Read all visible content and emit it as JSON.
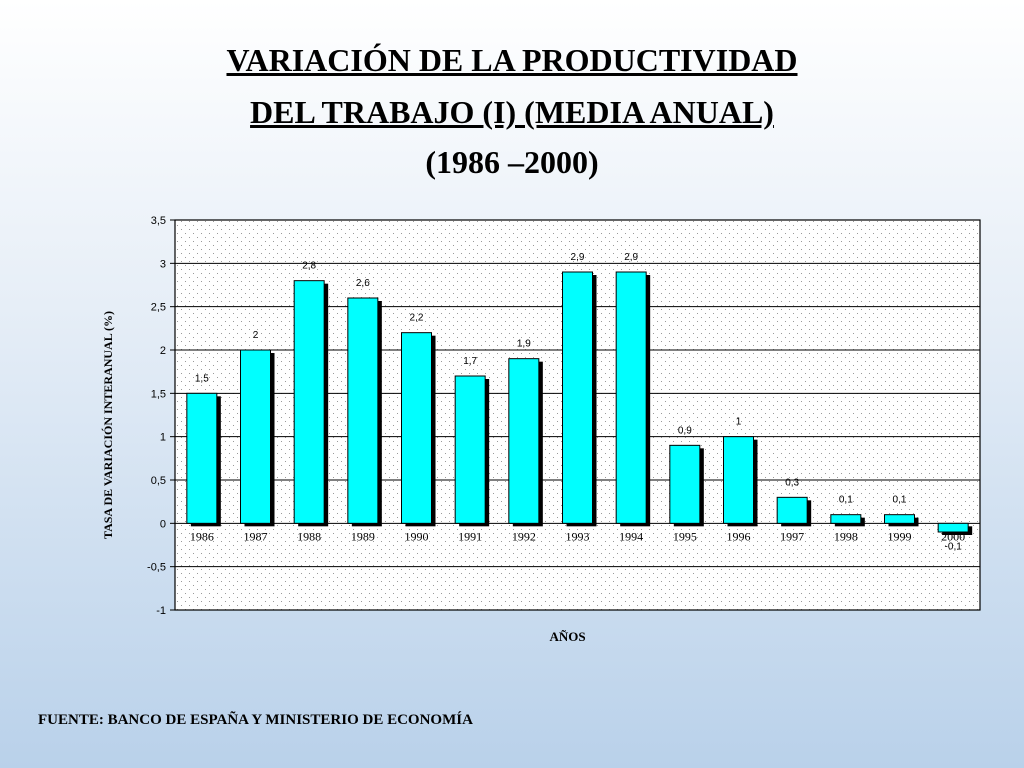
{
  "title": {
    "line1": "VARIACIÓN DE LA PRODUCTIVIDAD",
    "line2": "DEL TRABAJO (I) (MEDIA ANUAL)",
    "line3": "(1986 –2000)"
  },
  "source": "FUENTE: BANCO DE ESPAÑA Y MINISTERIO DE ECONOMÍA",
  "chart_data": {
    "type": "bar",
    "categories": [
      "1986",
      "1987",
      "1988",
      "1989",
      "1990",
      "1991",
      "1992",
      "1993",
      "1994",
      "1995",
      "1996",
      "1997",
      "1998",
      "1999",
      "2000"
    ],
    "values": [
      1.5,
      2,
      2.8,
      2.6,
      2.2,
      1.7,
      1.9,
      2.9,
      2.9,
      0.9,
      1,
      0.3,
      0.1,
      0.1,
      -0.1
    ],
    "value_labels": [
      "1,5",
      "2",
      "2,8",
      "2,6",
      "2,2",
      "1,7",
      "1,9",
      "2,9",
      "2,9",
      "0,9",
      "1",
      "0,3",
      "0,1",
      "0,1",
      "-0,1"
    ],
    "ylim": [
      -1,
      3.5
    ],
    "yticks": [
      -1,
      -0.5,
      0,
      0.5,
      1,
      1.5,
      2,
      2.5,
      3,
      3.5
    ],
    "ytick_labels": [
      "-1",
      "-0,5",
      "0",
      "0,5",
      "1",
      "1,5",
      "2",
      "2,5",
      "3",
      "3,5"
    ],
    "xlabel": "AÑOS",
    "ylabel": "TASA DE VARIACIÓN INTERANUAL (%)",
    "grid": true,
    "bar_color": "#00ffff",
    "bar_shadow_color": "#000000",
    "plot_background": "#ffffff"
  }
}
